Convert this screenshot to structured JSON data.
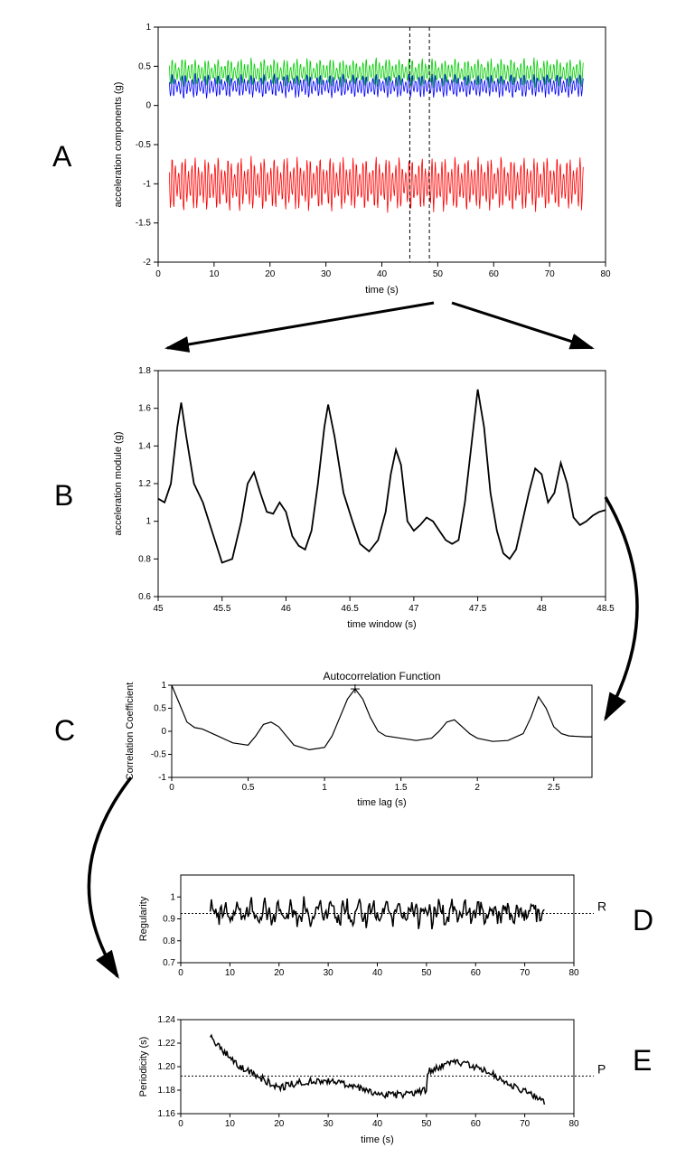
{
  "panelA": {
    "label": "A",
    "xlabel": "time (s)",
    "ylabel": "acceleration components   (g)",
    "xlim": [
      0,
      80
    ],
    "xtick_step": 10,
    "ylim": [
      -2,
      1
    ],
    "ytick_step": 0.5,
    "vline1_x": 45,
    "vline2_x": 48.5,
    "series": [
      {
        "color": "#00cc00",
        "baseline": 0.42,
        "amplitude": 0.18,
        "freq": 1.7
      },
      {
        "color": "#0000ff",
        "baseline": 0.25,
        "amplitude": 0.15,
        "freq": 1.7
      },
      {
        "color": "#ff0000",
        "baseline": -1.0,
        "amplitude": 0.35,
        "freq": 1.7
      }
    ],
    "axis_color": "#000000",
    "label_fontsize": 11
  },
  "panelB": {
    "label": "B",
    "xlabel": "time window (s)",
    "ylabel": "acceleration module   (g)",
    "xlim": [
      45,
      48.5
    ],
    "xtick_step": 0.5,
    "ylim": [
      0.6,
      1.8
    ],
    "ytick_step": 0.2,
    "line_color": "#000000",
    "line_width": 1.8,
    "data": [
      [
        45.0,
        1.12
      ],
      [
        45.05,
        1.1
      ],
      [
        45.1,
        1.2
      ],
      [
        45.15,
        1.5
      ],
      [
        45.18,
        1.63
      ],
      [
        45.22,
        1.45
      ],
      [
        45.28,
        1.2
      ],
      [
        45.35,
        1.1
      ],
      [
        45.42,
        0.95
      ],
      [
        45.5,
        0.78
      ],
      [
        45.58,
        0.8
      ],
      [
        45.65,
        1.0
      ],
      [
        45.7,
        1.2
      ],
      [
        45.75,
        1.26
      ],
      [
        45.8,
        1.15
      ],
      [
        45.85,
        1.05
      ],
      [
        45.9,
        1.04
      ],
      [
        45.95,
        1.1
      ],
      [
        46.0,
        1.05
      ],
      [
        46.05,
        0.92
      ],
      [
        46.1,
        0.87
      ],
      [
        46.15,
        0.85
      ],
      [
        46.2,
        0.95
      ],
      [
        46.25,
        1.2
      ],
      [
        46.3,
        1.5
      ],
      [
        46.33,
        1.62
      ],
      [
        46.38,
        1.45
      ],
      [
        46.45,
        1.15
      ],
      [
        46.52,
        1.0
      ],
      [
        46.58,
        0.88
      ],
      [
        46.65,
        0.84
      ],
      [
        46.72,
        0.9
      ],
      [
        46.78,
        1.05
      ],
      [
        46.82,
        1.25
      ],
      [
        46.86,
        1.38
      ],
      [
        46.9,
        1.3
      ],
      [
        46.95,
        1.0
      ],
      [
        47.0,
        0.95
      ],
      [
        47.05,
        0.98
      ],
      [
        47.1,
        1.02
      ],
      [
        47.15,
        1.0
      ],
      [
        47.2,
        0.95
      ],
      [
        47.25,
        0.9
      ],
      [
        47.3,
        0.88
      ],
      [
        47.35,
        0.9
      ],
      [
        47.4,
        1.1
      ],
      [
        47.45,
        1.4
      ],
      [
        47.5,
        1.7
      ],
      [
        47.55,
        1.5
      ],
      [
        47.6,
        1.15
      ],
      [
        47.65,
        0.95
      ],
      [
        47.7,
        0.83
      ],
      [
        47.75,
        0.8
      ],
      [
        47.8,
        0.85
      ],
      [
        47.85,
        1.0
      ],
      [
        47.9,
        1.15
      ],
      [
        47.95,
        1.28
      ],
      [
        48.0,
        1.25
      ],
      [
        48.05,
        1.1
      ],
      [
        48.1,
        1.15
      ],
      [
        48.15,
        1.31
      ],
      [
        48.2,
        1.2
      ],
      [
        48.25,
        1.02
      ],
      [
        48.3,
        0.98
      ],
      [
        48.35,
        1.0
      ],
      [
        48.4,
        1.03
      ],
      [
        48.45,
        1.05
      ],
      [
        48.5,
        1.06
      ]
    ],
    "axis_color": "#000000",
    "label_fontsize": 11
  },
  "panelC": {
    "label": "C",
    "title": "Autocorrelation Function",
    "xlabel": "time lag (s)",
    "ylabel": "Correlation Coefficient",
    "xlim": [
      0,
      2.75
    ],
    "xtick_step": 0.5,
    "ylim": [
      -1,
      1
    ],
    "ytick_step": 0.5,
    "line_color": "#000000",
    "line_width": 1.2,
    "marker_x": 1.2,
    "marker_y": 0.92,
    "data": [
      [
        0.0,
        1.0
      ],
      [
        0.05,
        0.6
      ],
      [
        0.1,
        0.2
      ],
      [
        0.15,
        0.08
      ],
      [
        0.2,
        0.05
      ],
      [
        0.3,
        -0.1
      ],
      [
        0.4,
        -0.25
      ],
      [
        0.5,
        -0.3
      ],
      [
        0.55,
        -0.1
      ],
      [
        0.6,
        0.15
      ],
      [
        0.65,
        0.2
      ],
      [
        0.7,
        0.1
      ],
      [
        0.75,
        -0.1
      ],
      [
        0.8,
        -0.3
      ],
      [
        0.9,
        -0.4
      ],
      [
        1.0,
        -0.35
      ],
      [
        1.05,
        -0.1
      ],
      [
        1.1,
        0.3
      ],
      [
        1.15,
        0.7
      ],
      [
        1.2,
        0.92
      ],
      [
        1.25,
        0.7
      ],
      [
        1.3,
        0.3
      ],
      [
        1.35,
        0.0
      ],
      [
        1.4,
        -0.1
      ],
      [
        1.5,
        -0.15
      ],
      [
        1.6,
        -0.2
      ],
      [
        1.7,
        -0.15
      ],
      [
        1.75,
        0.0
      ],
      [
        1.8,
        0.2
      ],
      [
        1.85,
        0.25
      ],
      [
        1.9,
        0.1
      ],
      [
        1.95,
        -0.05
      ],
      [
        2.0,
        -0.15
      ],
      [
        2.1,
        -0.22
      ],
      [
        2.2,
        -0.2
      ],
      [
        2.3,
        -0.05
      ],
      [
        2.35,
        0.3
      ],
      [
        2.4,
        0.75
      ],
      [
        2.45,
        0.5
      ],
      [
        2.5,
        0.1
      ],
      [
        2.55,
        -0.05
      ],
      [
        2.6,
        -0.1
      ],
      [
        2.7,
        -0.12
      ],
      [
        2.75,
        -0.12
      ]
    ],
    "axis_color": "#000000"
  },
  "panelD": {
    "label": "D",
    "ylabel": "Regularity",
    "annotation": "RI",
    "xlim": [
      0,
      80
    ],
    "xtick_step": 10,
    "ylim": [
      0.7,
      1.1
    ],
    "ytick_step": 0.1,
    "ytick_labels": [
      "0.7",
      "0.8",
      "0.9",
      "1"
    ],
    "hline_y": 0.925,
    "line_color": "#000000",
    "line_width": 1.5,
    "data_start_x": 6,
    "data_end_x": 74,
    "baseline": 0.93,
    "noise_amp": 0.07,
    "axis_color": "#000000"
  },
  "panelE": {
    "label": "E",
    "xlabel": "time (s)",
    "ylabel": "Periodicity (s)",
    "annotation": "PI",
    "xlim": [
      0,
      80
    ],
    "xtick_step": 10,
    "ylim": [
      1.16,
      1.24
    ],
    "ytick_step": 0.02,
    "hline_y": 1.192,
    "line_color": "#000000",
    "line_width": 1.5,
    "data_start_x": 6,
    "data_end_x": 74,
    "axis_color": "#000000"
  },
  "arrows": {
    "color": "#000000",
    "stroke_width": 3
  }
}
